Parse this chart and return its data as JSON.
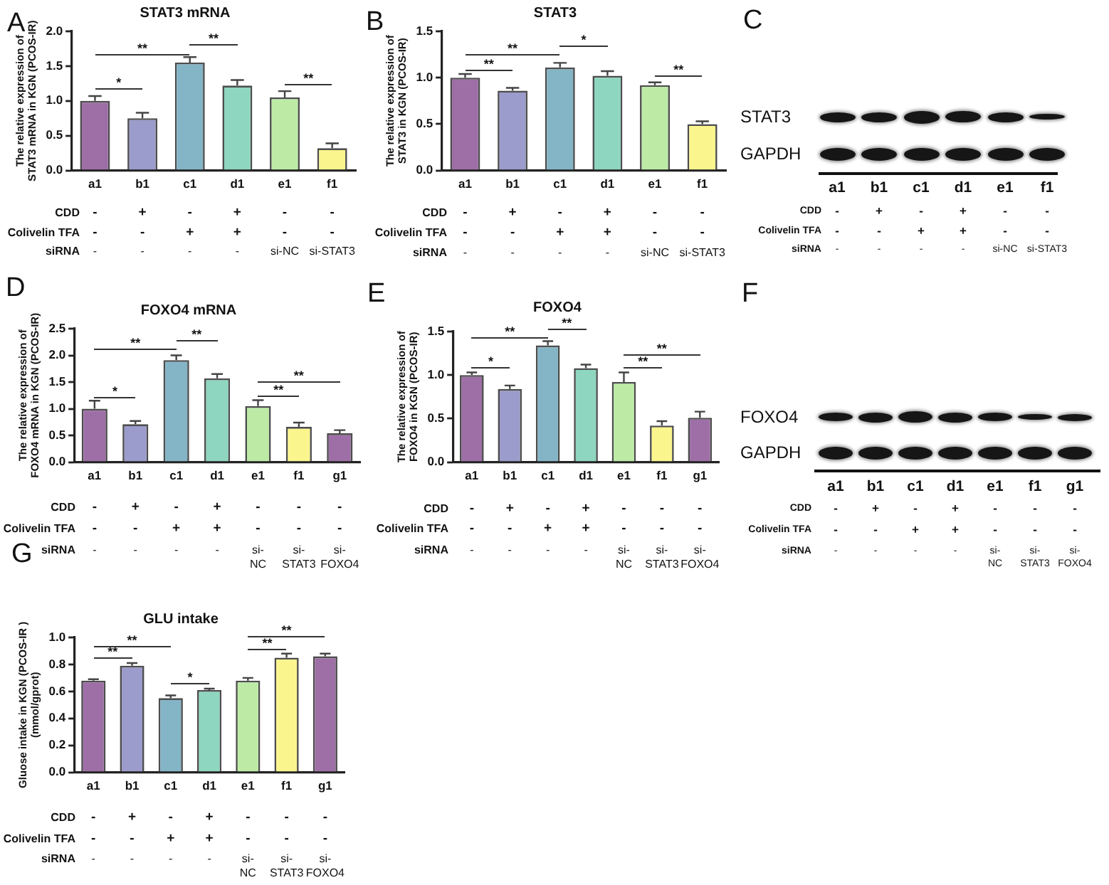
{
  "chart_data": [
    {
      "type": "bar",
      "title": "STAT3 mRNA",
      "ylabel": "The relative expression of\nSTAT3 mRNA in KGN (PCOS-IR)",
      "categories": [
        "a1",
        "b1",
        "c1",
        "d1",
        "e1",
        "f1"
      ],
      "values": [
        1.0,
        0.75,
        1.55,
        1.22,
        1.05,
        0.32
      ],
      "colors": [
        "#9e6fa6",
        "#9b9ccb",
        "#84b5c6",
        "#8ed6c0",
        "#bdeba6",
        "#fbf58e"
      ],
      "errors": [
        [
          1.0,
          1.07
        ],
        [
          0.75,
          0.83
        ],
        [
          1.55,
          1.63
        ],
        [
          1.22,
          1.3
        ],
        [
          1.05,
          1.14
        ],
        [
          0.32,
          0.39
        ]
      ],
      "ylim": [
        0,
        2
      ],
      "yticks": [
        {
          "value": 0,
          "label": "0.0"
        },
        0.5,
        {
          "value": 1,
          "label": "1.0"
        },
        1.5,
        {
          "value": 2,
          "label": "2.0"
        }
      ],
      "annotations": [
        "A",
        "*",
        "**",
        "**",
        "**",
        "CDD",
        "-",
        "+",
        "-",
        "+",
        "-",
        "-",
        "Colivelin TFA",
        "-",
        "-",
        "+",
        "+",
        "-",
        "-",
        "siRNA",
        "-",
        "-",
        "-",
        "-",
        "si-NC",
        "si-STAT3"
      ]
    },
    {
      "type": "bar",
      "title": "STAT3",
      "ylabel": "The relative expression of\nSTAT3 in KGN (PCOS-IR)",
      "categories": [
        "a1",
        "b1",
        "c1",
        "d1",
        "e1",
        "f1"
      ],
      "values": [
        1.0,
        0.86,
        1.11,
        1.02,
        0.92,
        0.5
      ],
      "colors": [
        "#9e6fa6",
        "#9b9ccb",
        "#84b5c6",
        "#8ed6c0",
        "#bdeba6",
        "#fbf58e"
      ],
      "errors": [
        [
          1.0,
          1.04
        ],
        [
          0.86,
          0.89
        ],
        [
          1.11,
          1.16
        ],
        [
          1.02,
          1.07
        ],
        [
          0.92,
          0.95
        ],
        [
          0.5,
          0.53
        ]
      ],
      "ylim": [
        0,
        1.5
      ],
      "yticks": [
        {
          "value": 0,
          "label": "0.0"
        },
        0.5,
        {
          "value": 1,
          "label": "1.0"
        },
        1.5
      ],
      "annotations": [
        "B",
        "**",
        "**",
        "*",
        "**",
        "CDD",
        "-",
        "+",
        "-",
        "+",
        "-",
        "-",
        "Colivelin TFA",
        "-",
        "-",
        "+",
        "+",
        "-",
        "-",
        "siRNA",
        "-",
        "-",
        "-",
        "-",
        "si-NC",
        "si-STAT3"
      ]
    },
    {
      "type": "other",
      "categories": [
        "a1",
        "b1",
        "c1",
        "d1",
        "e1",
        "f1"
      ],
      "annotations": [
        "C",
        "STAT3",
        "GAPDH",
        "CDD",
        "-",
        "+",
        "-",
        "+",
        "-",
        "-",
        "Colivelin TFA",
        "-",
        "-",
        "+",
        "+",
        "-",
        "-",
        "siRNA",
        "-",
        "-",
        "-",
        "-",
        "si-NC",
        "si-STAT3"
      ]
    },
    {
      "type": "bar",
      "title": "FOXO4 mRNA",
      "ylabel": "The relative expression of\nFOXO4 mRNA in KGN (PCOS-IR)",
      "categories": [
        "a1",
        "b1",
        "c1",
        "d1",
        "e1",
        "f1",
        "g1"
      ],
      "values": [
        1.0,
        0.71,
        1.91,
        1.57,
        1.05,
        0.66,
        0.54
      ],
      "colors": [
        "#9e6fa6",
        "#9b9ccb",
        "#84b5c6",
        "#8ed6c0",
        "#bdeba6",
        "#fbf58e",
        "#9e6fa6"
      ],
      "errors": [
        [
          1.0,
          1.15
        ],
        [
          0.71,
          0.77
        ],
        [
          1.91,
          2.0
        ],
        [
          1.57,
          1.65
        ],
        [
          1.05,
          1.16
        ],
        [
          0.66,
          0.74
        ],
        [
          0.54,
          0.6
        ]
      ],
      "ylim": [
        0,
        2.5
      ],
      "yticks": [
        {
          "value": 0,
          "label": "0.0"
        },
        0.5,
        {
          "value": 1,
          "label": "1.0"
        },
        1.5,
        {
          "value": 2,
          "label": "2.0"
        },
        2.5
      ],
      "annotations": [
        "D",
        "*",
        "**",
        "**",
        "**",
        "**",
        "CDD",
        "-",
        "+",
        "-",
        "+",
        "-",
        "-",
        "-",
        "Colivelin TFA",
        "-",
        "-",
        "+",
        "+",
        "-",
        "-",
        "-",
        "siRNA",
        "-",
        "-",
        "-",
        "-",
        "si-NC",
        "si-STAT3",
        "si-FOXO4"
      ]
    },
    {
      "type": "bar",
      "title": "FOXO4",
      "ylabel": "The relative expression of\nFOXO4 in KGN (PCOS-IR)",
      "categories": [
        "a1",
        "b1",
        "c1",
        "d1",
        "e1",
        "f1",
        "g1"
      ],
      "values": [
        1.0,
        0.84,
        1.34,
        1.08,
        0.92,
        0.42,
        0.51
      ],
      "colors": [
        "#9e6fa6",
        "#9b9ccb",
        "#84b5c6",
        "#8ed6c0",
        "#bdeba6",
        "#fbf58e",
        "#9e6fa6"
      ],
      "errors": [
        [
          1.0,
          1.03
        ],
        [
          0.84,
          0.88
        ],
        [
          1.34,
          1.39
        ],
        [
          1.08,
          1.12
        ],
        [
          0.92,
          1.03
        ],
        [
          0.42,
          0.47
        ],
        [
          0.51,
          0.58
        ]
      ],
      "ylim": [
        0,
        1.5
      ],
      "yticks": [
        {
          "value": 0,
          "label": "0.0"
        },
        0.5,
        {
          "value": 1,
          "label": "1.0"
        },
        1.5
      ],
      "annotations": [
        "E",
        "*",
        "**",
        "**",
        "**",
        "**",
        "CDD",
        "-",
        "+",
        "-",
        "+",
        "-",
        "-",
        "-",
        "Colivelin TFA",
        "-",
        "-",
        "+",
        "+",
        "-",
        "-",
        "-",
        "siRNA",
        "-",
        "-",
        "-",
        "-",
        "si-NC",
        "si-STAT3",
        "si-FOXO4"
      ]
    },
    {
      "type": "other",
      "categories": [
        "a1",
        "b1",
        "c1",
        "d1",
        "e1",
        "f1",
        "g1"
      ],
      "annotations": [
        "F",
        "FOXO4",
        "GAPDH",
        "CDD",
        "-",
        "+",
        "-",
        "+",
        "-",
        "-",
        "-",
        "Colivelin TFA",
        "-",
        "-",
        "+",
        "+",
        "-",
        "-",
        "-",
        "siRNA",
        "-",
        "-",
        "-",
        "-",
        "si-NC",
        "si-STAT3",
        "si-FOXO4"
      ]
    },
    {
      "type": "bar",
      "title": "GLU intake",
      "ylabel": "Gluose intake in KGN (PCOS-IR )\n(mmol/gprot)",
      "categories": [
        "a1",
        "b1",
        "c1",
        "d1",
        "e1",
        "f1",
        "g1"
      ],
      "values": [
        0.68,
        0.79,
        0.55,
        0.61,
        0.68,
        0.85,
        0.86
      ],
      "colors": [
        "#9e6fa6",
        "#9b9ccb",
        "#84b5c6",
        "#8ed6c0",
        "#bdeba6",
        "#fbf58e",
        "#9e6fa6"
      ],
      "errors": [
        [
          0.68,
          0.69
        ],
        [
          0.79,
          0.81
        ],
        [
          0.55,
          0.57
        ],
        [
          0.61,
          0.62
        ],
        [
          0.68,
          0.7
        ],
        [
          0.85,
          0.88
        ],
        [
          0.86,
          0.88
        ]
      ],
      "ylim": [
        0,
        1.0
      ],
      "yticks": [
        {
          "value": 0,
          "label": "0.0"
        },
        {
          "value": 0.2,
          "label": "0.2"
        },
        {
          "value": 0.4,
          "label": "0.4"
        },
        {
          "value": 0.6,
          "label": "0.6"
        },
        {
          "value": 0.8,
          "label": "0.8"
        },
        {
          "value": 1.0,
          "label": "1.0"
        }
      ],
      "annotations": [
        "G",
        "**",
        "**",
        "*",
        "**",
        "**",
        "CDD",
        "-",
        "+",
        "-",
        "+",
        "-",
        "-",
        "-",
        "Colivelin TFA",
        "-",
        "-",
        "+",
        "+",
        "-",
        "-",
        "-",
        "siRNA",
        "-",
        "-",
        "-",
        "-",
        "si-NC",
        "si-STAT3",
        "si-FOXO4"
      ]
    }
  ]
}
